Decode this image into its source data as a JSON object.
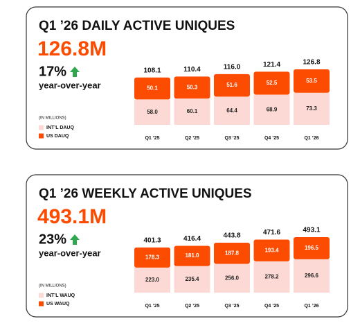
{
  "chart_data": [
    {
      "type": "bar",
      "stacked": true,
      "title": "Q1 ’26 DAILY ACTIVE UNIQUES",
      "headline": "126.8M",
      "change": "17%",
      "change_note": "year-over-year",
      "unit_note": "(IN MILLIONS)",
      "categories": [
        "Q1 ’25",
        "Q2 ’25",
        "Q3 ’25",
        "Q4 ’25",
        "Q1 ’26"
      ],
      "series": [
        {
          "name": "INT’L DAUQ",
          "color": "#fcd9d4",
          "values": [
            58.0,
            60.1,
            64.4,
            68.9,
            73.3
          ],
          "value_labels": [
            "58.0",
            "60.1",
            "64.4",
            "68.9",
            "73.3"
          ]
        },
        {
          "name": "US DAUQ",
          "color": "#fc4c02",
          "values": [
            50.1,
            50.3,
            51.6,
            52.5,
            53.5
          ]
        }
      ],
      "totals": [
        108.1,
        110.4,
        116.0,
        121.4,
        126.8
      ],
      "total_labels": [
        "108.1",
        "110.4",
        "116.0",
        "121.4",
        "126.8"
      ]
    },
    {
      "type": "bar",
      "stacked": true,
      "title": "Q1 ’26 WEEKLY ACTIVE UNIQUES",
      "headline": "493.1M",
      "change": "23%",
      "change_note": "year-over-year",
      "unit_note": "(IN MILLIONS)",
      "categories": [
        "Q1 ’25",
        "Q2 ’25",
        "Q3 ’25",
        "Q4 ’25",
        "Q1 ’26"
      ],
      "series": [
        {
          "name": "INT’L WAUQ",
          "color": "#fcd9d4",
          "values": [
            223.0,
            235.4,
            256.0,
            278.2,
            296.6
          ],
          "value_labels": [
            "223.0",
            "235.4",
            "256.0",
            "278.2",
            "296.6"
          ]
        },
        {
          "name": "US WAUQ",
          "color": "#fc4c02",
          "values": [
            178.3,
            181.0,
            187.8,
            193.4,
            196.5
          ],
          "value_labels": [
            "178.3",
            "181.0",
            "187.8",
            "193.4",
            "196.5"
          ]
        }
      ],
      "totals": [
        401.3,
        416.4,
        443.8,
        471.6,
        493.1
      ],
      "total_labels": [
        "401.3",
        "416.4",
        "443.8",
        "471.6",
        "493.1"
      ]
    }
  ]
}
